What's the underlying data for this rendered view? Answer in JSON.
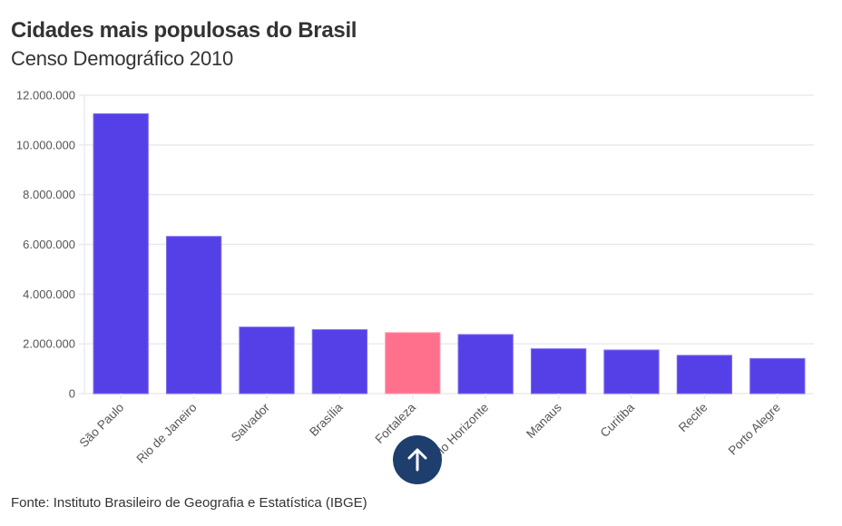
{
  "header": {
    "title": "Cidades mais populosas do Brasil",
    "subtitle": "Censo Demográfico 2010"
  },
  "footer": {
    "source": "Fonte: Instituto Brasileiro de Geografia e Estatística (IBGE)"
  },
  "scroll_top_button": {
    "icon": "arrow-up-icon"
  },
  "colors": {
    "bar": "#5540e8",
    "highlight": "#ff708c",
    "grid": "#ebebeb",
    "button": "#1e3f6d"
  },
  "chart_data": {
    "type": "bar",
    "title": "Cidades mais populosas do Brasil",
    "subtitle": "Censo Demográfico 2010",
    "xlabel": "",
    "ylabel": "",
    "categories": [
      "São Paulo",
      "Rio de Janeiro",
      "Salvador",
      "Brasília",
      "Fortaleza",
      "Belo Horizonte",
      "Manaus",
      "Curitiba",
      "Recife",
      "Porto Alegre"
    ],
    "values": [
      11253503,
      6320446,
      2675656,
      2570160,
      2452185,
      2375151,
      1802014,
      1751907,
      1537704,
      1409351
    ],
    "highlighted": [
      "Fortaleza"
    ],
    "ylim": [
      0,
      12000000
    ],
    "yticks": [
      0,
      2000000,
      4000000,
      6000000,
      8000000,
      10000000,
      12000000
    ],
    "ytick_labels": [
      "0",
      "2.000.000",
      "4.000.000",
      "6.000.000",
      "8.000.000",
      "10.000.000",
      "12.000.000"
    ],
    "grid": true,
    "legend": "none",
    "source": "Fonte: Instituto Brasileiro de Geografia e Estatística (IBGE)"
  }
}
